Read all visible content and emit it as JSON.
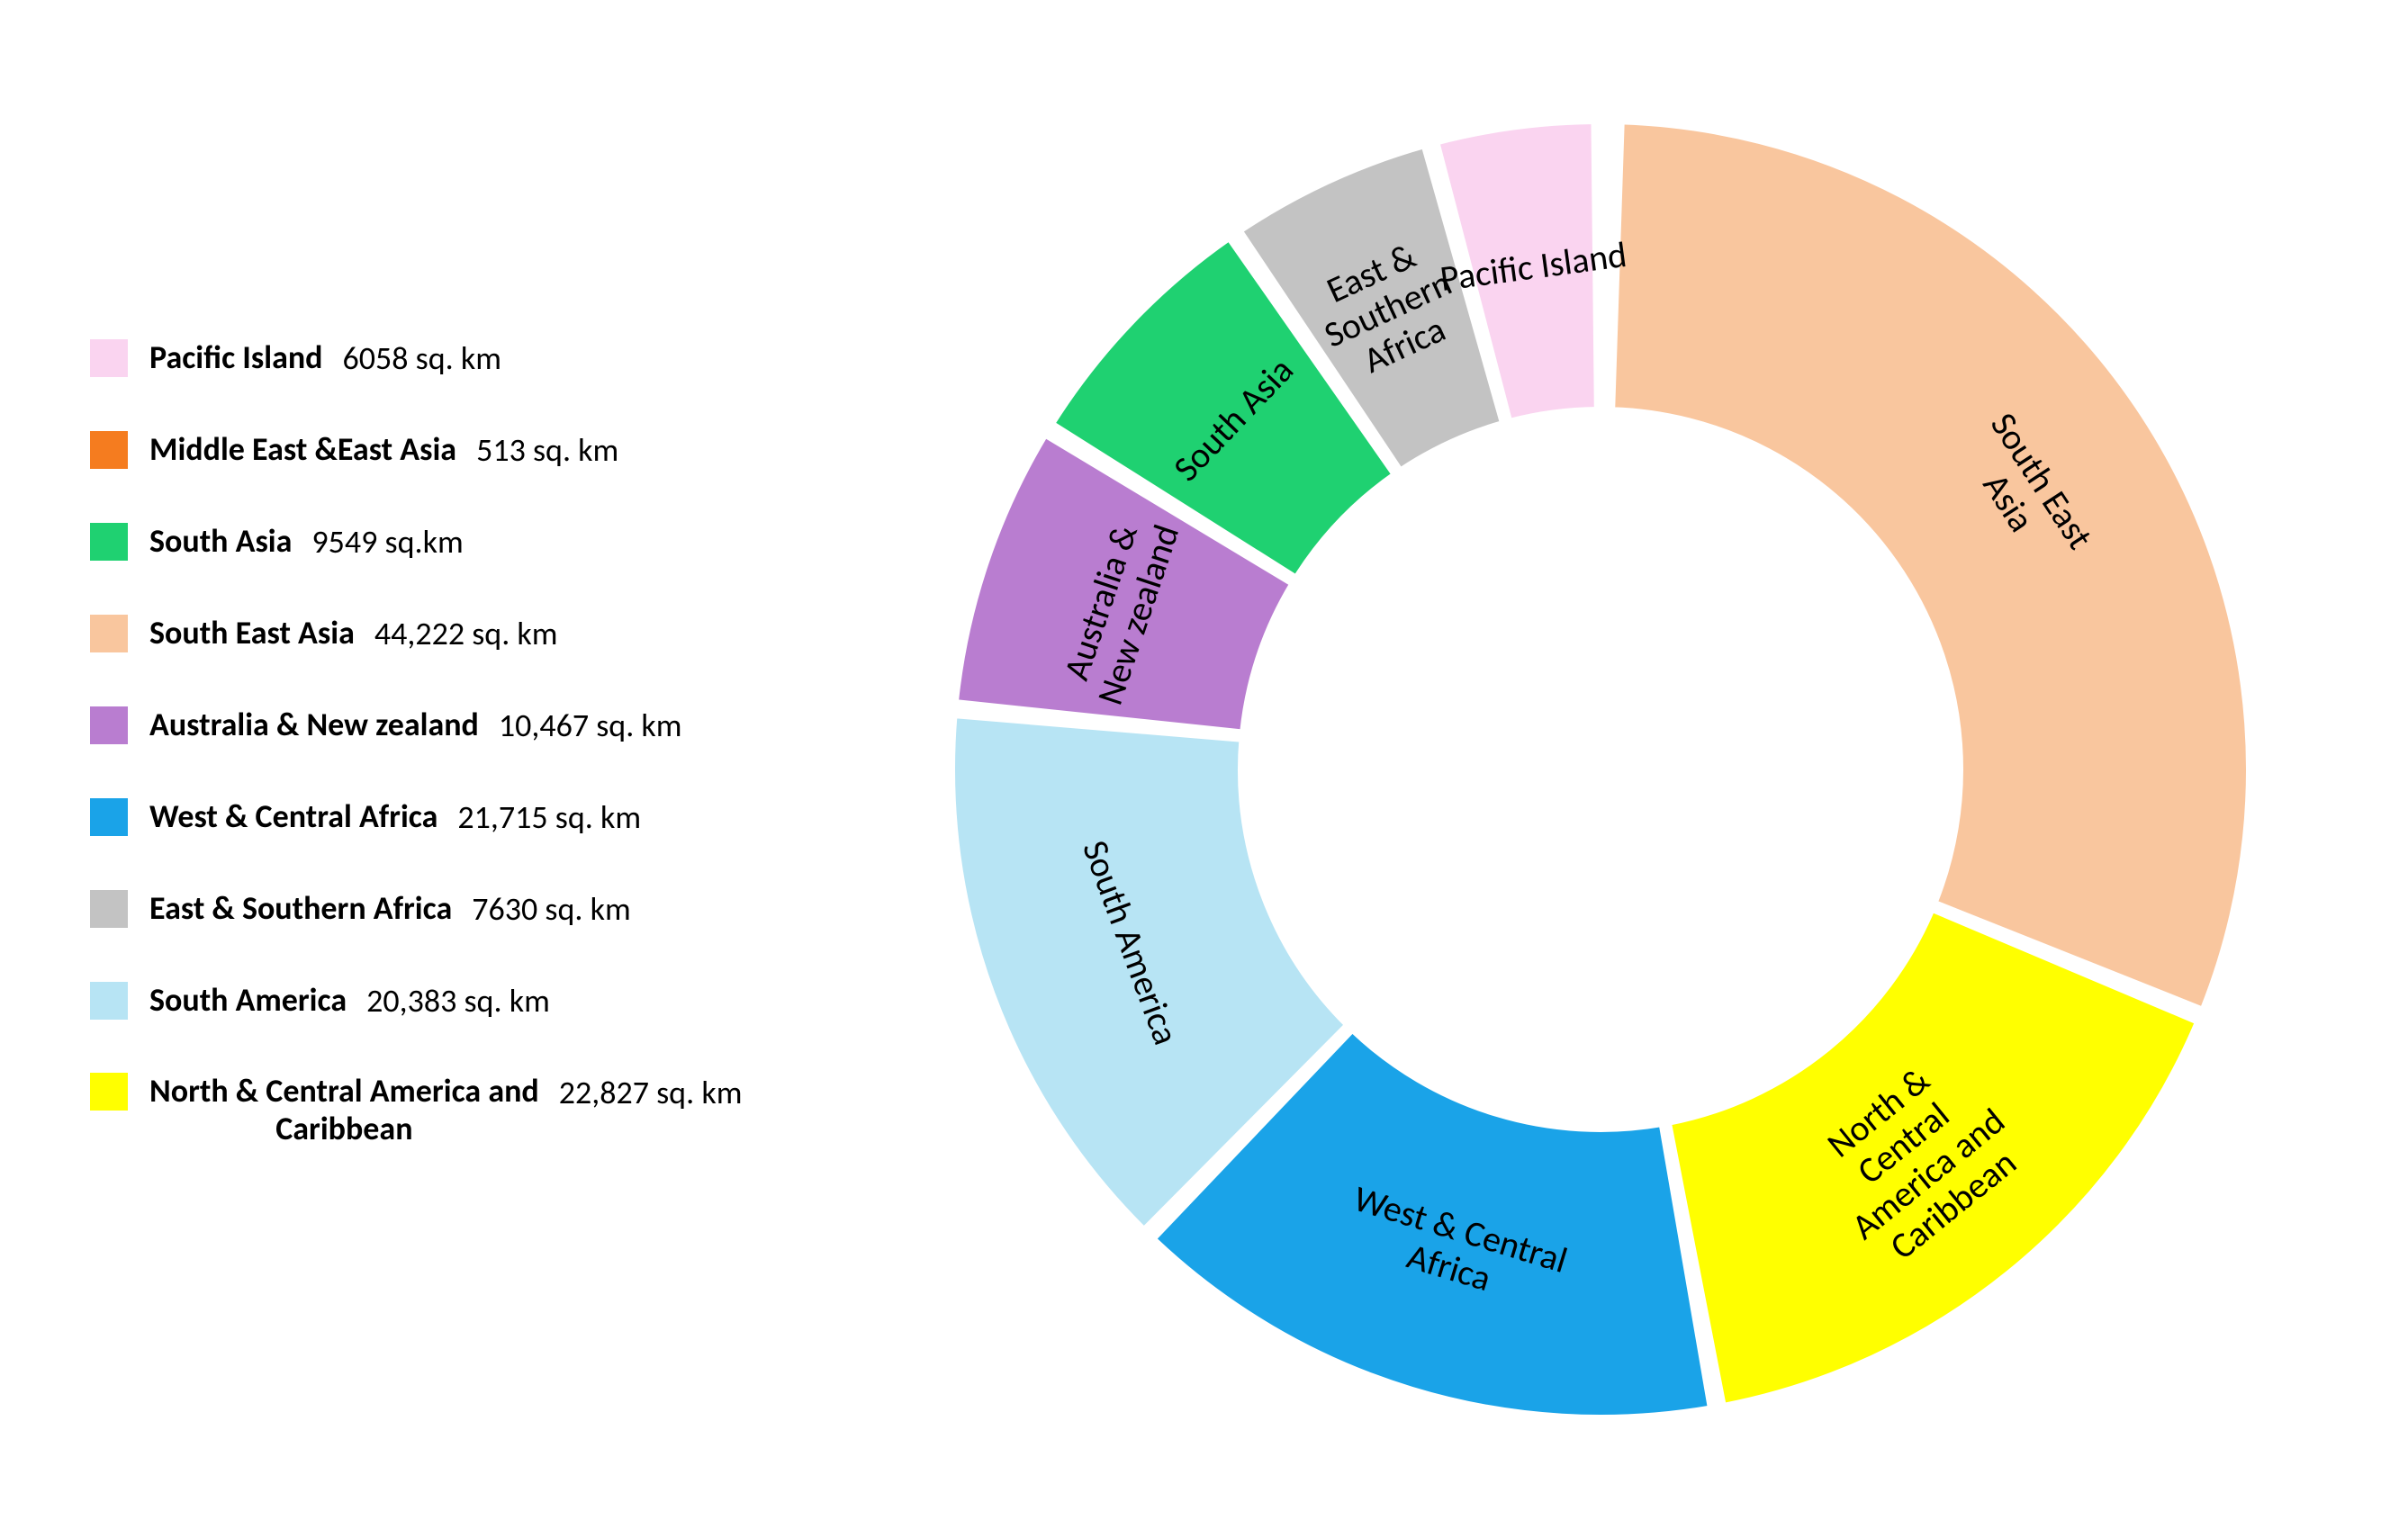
{
  "chart": {
    "type": "donut",
    "outer_radius": 720,
    "inner_radius": 400,
    "gap_deg": 1.2,
    "stroke": "#ffffff",
    "stroke_width": 6,
    "background_color": "#ffffff",
    "label_fontsize": 40,
    "label_color": "#000000",
    "start_angle_deg": -90,
    "slices": [
      {
        "name": "Middle East &East Asia",
        "value": 513,
        "value_text": "513 sq. km",
        "color": "#f57c1f",
        "show_label": false
      },
      {
        "name": "South East Asia",
        "value": 44222,
        "value_text": "44,222 sq. km",
        "color": "#f9c69e",
        "show_label": true
      },
      {
        "name": "North & Central America and Caribbean",
        "value": 22827,
        "value_text": "22,827 sq. km",
        "color": "#ffff00",
        "show_label": true
      },
      {
        "name": "West & Central Africa",
        "value": 21715,
        "value_text": "21,715 sq. km",
        "color": "#1aa3e8",
        "show_label": true
      },
      {
        "name": "South America",
        "value": 20383,
        "value_text": "20,383 sq. km",
        "color": "#b7e4f4",
        "show_label": true
      },
      {
        "name": "Australia & New zealand",
        "value": 10467,
        "value_text": "10,467 sq. km",
        "color": "#b97dd0",
        "show_label": true
      },
      {
        "name": "South Asia",
        "value": 9549,
        "value_text": "9549 sq.km",
        "color": "#1fd171",
        "show_label": true
      },
      {
        "name": "East & Southern Africa",
        "value": 7630,
        "value_text": "7630 sq. km",
        "color": "#c3c3c3",
        "show_label": true
      },
      {
        "name": "Pacific Island",
        "value": 6058,
        "value_text": "6058 sq. km",
        "color": "#fad4f0",
        "show_label": true
      }
    ]
  },
  "legend": {
    "swatch_size": 42,
    "label_fontsize": 36,
    "value_fontsize": 36,
    "items": [
      {
        "label": "Pacific Island",
        "value": "6058 sq. km",
        "color": "#fad4f0"
      },
      {
        "label": "Middle East &East Asia",
        "value": "513 sq. km",
        "color": "#f57c1f"
      },
      {
        "label": "South Asia",
        "value": "9549 sq.km",
        "color": "#1fd171"
      },
      {
        "label": "South East Asia",
        "value": "44,222 sq. km",
        "color": "#f9c69e"
      },
      {
        "label": "Australia & New zealand",
        "value": "10,467 sq. km",
        "color": "#b97dd0"
      },
      {
        "label": "West & Central Africa",
        "value": "21,715 sq. km",
        "color": "#1aa3e8"
      },
      {
        "label": "East & Southern Africa",
        "value": "7630 sq. km",
        "color": "#c3c3c3"
      },
      {
        "label": "South America",
        "value": "20,383 sq. km",
        "color": "#b7e4f4"
      },
      {
        "label": "North & Central America and Caribbean",
        "value": "22,827 sq. km",
        "color": "#ffff00",
        "multiline": true
      }
    ]
  }
}
